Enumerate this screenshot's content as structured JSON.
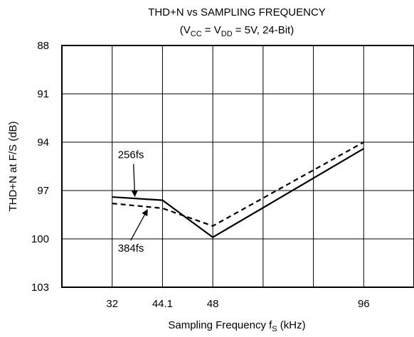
{
  "chart_data": {
    "type": "line",
    "title": "THD+N vs SAMPLING FREQUENCY",
    "subtitle": {
      "open": "(V",
      "vcc_sub": "CC",
      "mid": " = V",
      "vdd_sub": "DD",
      "close": " = 5V, 24-Bit)"
    },
    "xlabel": {
      "main": "Sampling Frequency f",
      "sub": "S",
      "unit": " (kHz)"
    },
    "ylabel": "THD+N at F/S (dB)",
    "x_ticks": [
      {
        "label": "32",
        "pos": 1
      },
      {
        "label": "44.1",
        "pos": 2
      },
      {
        "label": "48",
        "pos": 3
      },
      {
        "label": "96",
        "pos": 6
      }
    ],
    "x_grid_count": 7,
    "y_ticks": [
      "88",
      "91",
      "94",
      "97",
      "100",
      "103"
    ],
    "ylim": [
      88,
      103
    ],
    "y_inverted": true,
    "grid": true,
    "series": [
      {
        "name": "256fs",
        "style": "solid",
        "color": "#000000",
        "x": [
          32,
          44.1,
          48,
          96
        ],
        "y": [
          97.4,
          97.6,
          99.9,
          94.4
        ]
      },
      {
        "name": "384fs",
        "style": "dashed",
        "color": "#000000",
        "x": [
          32,
          44.1,
          48,
          96
        ],
        "y": [
          97.8,
          98.1,
          99.2,
          94.0
        ]
      }
    ],
    "annotations": [
      {
        "text": "256fs",
        "series": "256fs"
      },
      {
        "text": "384fs",
        "series": "384fs"
      }
    ]
  }
}
